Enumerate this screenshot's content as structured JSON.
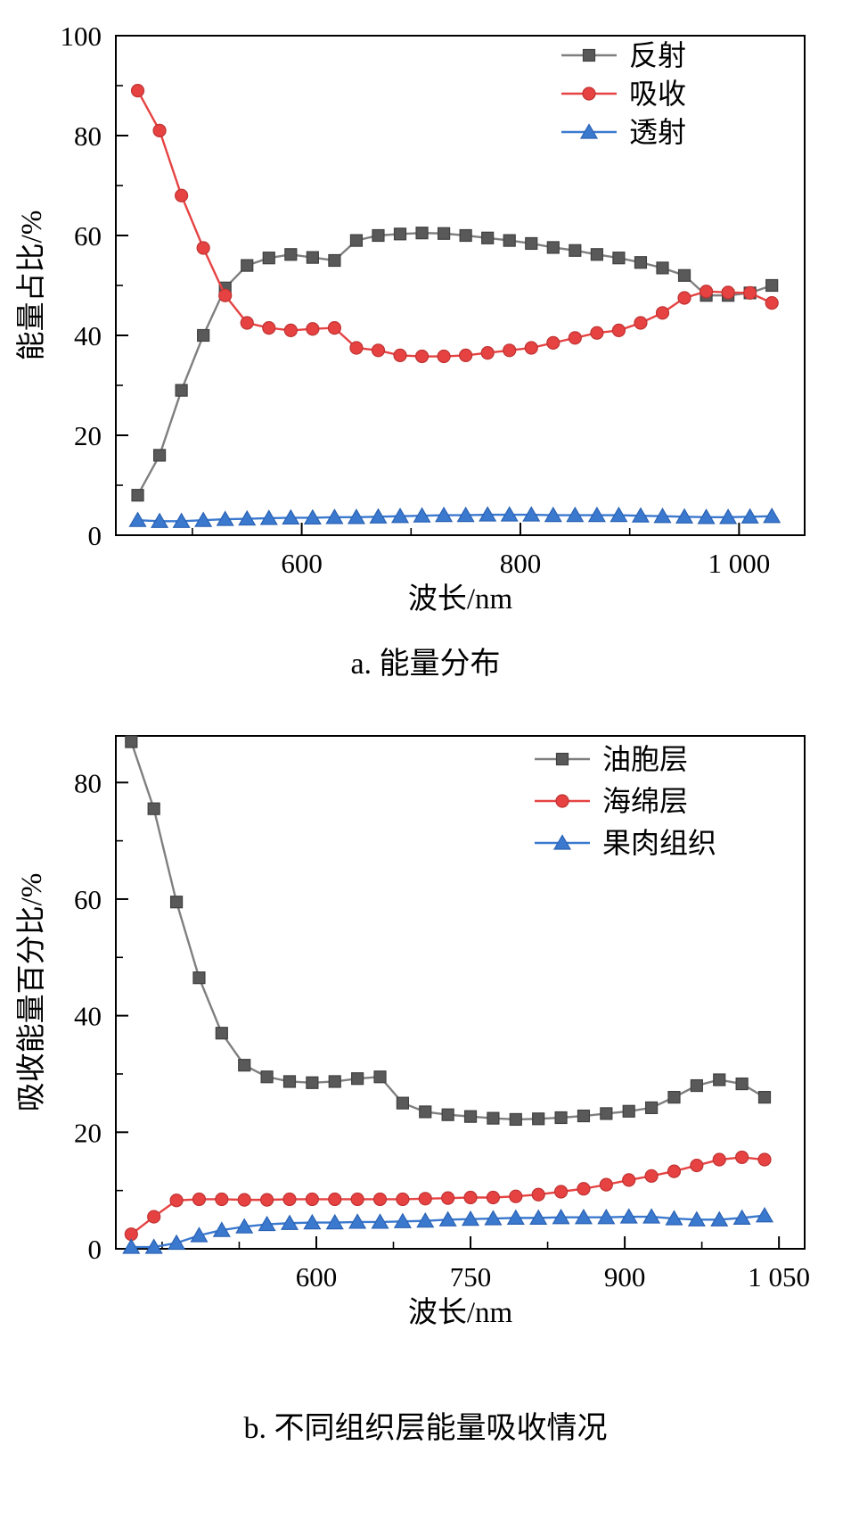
{
  "page": {
    "background": "#ffffff"
  },
  "chart_data": [
    {
      "id": "a",
      "type": "line",
      "caption": "a. 能量分布",
      "xlabel": "波长/nm",
      "ylabel": "能量占比/%",
      "xlim": [
        430,
        1060
      ],
      "ylim": [
        0,
        100
      ],
      "grid": false,
      "legend_position": "top-right-inside",
      "xticks": [
        {
          "v": 600,
          "label": "600"
        },
        {
          "v": 800,
          "label": "800"
        },
        {
          "v": 1000,
          "label": "1 000"
        }
      ],
      "xminor": [
        500,
        700,
        900
      ],
      "yticks": [
        {
          "v": 0,
          "label": "0"
        },
        {
          "v": 20,
          "label": "20"
        },
        {
          "v": 40,
          "label": "40"
        },
        {
          "v": 60,
          "label": "60"
        },
        {
          "v": 80,
          "label": "80"
        },
        {
          "v": 100,
          "label": "100"
        }
      ],
      "yminor": [
        10,
        30,
        50,
        70,
        90
      ],
      "series": [
        {
          "key": "reflect",
          "name": "反射",
          "marker": "square",
          "color": "#595959",
          "edge_color": "#404040",
          "line_color": "#7f7f7f",
          "x": [
            450,
            470,
            490,
            510,
            530,
            550,
            570,
            590,
            610,
            630,
            650,
            670,
            690,
            710,
            730,
            750,
            770,
            790,
            810,
            830,
            850,
            870,
            890,
            910,
            930,
            950,
            970,
            990,
            1010,
            1030
          ],
          "y": [
            8,
            16,
            29,
            40,
            49.5,
            54,
            55.5,
            56.2,
            55.6,
            55,
            59,
            60,
            60.3,
            60.5,
            60.4,
            60,
            59.5,
            59,
            58.4,
            57.6,
            57,
            56.2,
            55.5,
            54.6,
            53.5,
            52,
            48,
            48,
            48.5,
            50
          ]
        },
        {
          "key": "absorb",
          "name": "吸收",
          "marker": "circle",
          "color": "#e64242",
          "edge_color": "#c03232",
          "line_color": "#e64242",
          "x": [
            450,
            470,
            490,
            510,
            530,
            550,
            570,
            590,
            610,
            630,
            650,
            670,
            690,
            710,
            730,
            750,
            770,
            790,
            810,
            830,
            850,
            870,
            890,
            910,
            930,
            950,
            970,
            990,
            1010,
            1030
          ],
          "y": [
            89,
            81,
            68,
            57.5,
            48,
            42.5,
            41.5,
            41,
            41.3,
            41.5,
            37.5,
            37,
            36,
            35.8,
            35.8,
            36,
            36.5,
            37,
            37.5,
            38.5,
            39.5,
            40.5,
            41,
            42.5,
            44.5,
            47.5,
            48.8,
            48.6,
            48.5,
            46.5
          ]
        },
        {
          "key": "transmit",
          "name": "透射",
          "marker": "triangle",
          "color": "#3b79cf",
          "edge_color": "#2a62b4",
          "line_color": "#3b79cf",
          "x": [
            450,
            470,
            490,
            510,
            530,
            550,
            570,
            590,
            610,
            630,
            650,
            670,
            690,
            710,
            730,
            750,
            770,
            790,
            810,
            830,
            850,
            870,
            890,
            910,
            930,
            950,
            970,
            990,
            1010,
            1030
          ],
          "y": [
            3,
            2.8,
            2.8,
            3,
            3.2,
            3.3,
            3.4,
            3.5,
            3.5,
            3.6,
            3.6,
            3.7,
            3.8,
            3.9,
            4,
            4,
            4.1,
            4.1,
            4.1,
            4,
            4,
            4,
            4,
            3.9,
            3.8,
            3.7,
            3.6,
            3.6,
            3.7,
            3.8
          ]
        }
      ]
    },
    {
      "id": "b",
      "type": "line",
      "caption": "b. 不同组织层能量吸收情况",
      "xlabel": "波长/nm",
      "ylabel": "吸收能量百分比/%",
      "xlim": [
        405,
        1075
      ],
      "ylim": [
        0,
        88
      ],
      "grid": false,
      "legend_position": "top-right-inside",
      "xticks": [
        {
          "v": 600,
          "label": "600"
        },
        {
          "v": 750,
          "label": "750"
        },
        {
          "v": 900,
          "label": "900"
        },
        {
          "v": 1050,
          "label": "1 050"
        }
      ],
      "xminor": [
        450,
        525,
        675,
        825,
        975
      ],
      "yticks": [
        {
          "v": 0,
          "label": "0"
        },
        {
          "v": 20,
          "label": "20"
        },
        {
          "v": 40,
          "label": "40"
        },
        {
          "v": 60,
          "label": "60"
        },
        {
          "v": 80,
          "label": "80"
        }
      ],
      "yminor": [
        10,
        30,
        50,
        70
      ],
      "series": [
        {
          "key": "oil-cell-layer",
          "name": "油胞层",
          "marker": "square",
          "color": "#595959",
          "edge_color": "#404040",
          "line_color": "#7f7f7f",
          "x": [
            420,
            442,
            464,
            486,
            508,
            530,
            552,
            574,
            596,
            618,
            640,
            662,
            684,
            706,
            728,
            750,
            772,
            794,
            816,
            838,
            860,
            882,
            904,
            926,
            948,
            970,
            992,
            1014,
            1036
          ],
          "y": [
            87,
            75.5,
            59.5,
            46.5,
            37,
            31.5,
            29.5,
            28.7,
            28.5,
            28.7,
            29.2,
            29.5,
            25,
            23.5,
            23,
            22.7,
            22.4,
            22.2,
            22.3,
            22.5,
            22.8,
            23.2,
            23.6,
            24.2,
            26,
            28,
            29,
            28.3,
            26
          ]
        },
        {
          "key": "sponge-layer",
          "name": "海绵层",
          "marker": "circle",
          "color": "#e64242",
          "edge_color": "#c03232",
          "line_color": "#e64242",
          "x": [
            420,
            442,
            464,
            486,
            508,
            530,
            552,
            574,
            596,
            618,
            640,
            662,
            684,
            706,
            728,
            750,
            772,
            794,
            816,
            838,
            860,
            882,
            904,
            926,
            948,
            970,
            992,
            1014,
            1036
          ],
          "y": [
            2.5,
            5.5,
            8.3,
            8.5,
            8.5,
            8.4,
            8.4,
            8.5,
            8.5,
            8.5,
            8.5,
            8.5,
            8.5,
            8.6,
            8.7,
            8.8,
            8.8,
            9,
            9.3,
            9.8,
            10.3,
            11,
            11.8,
            12.5,
            13.3,
            14.3,
            15.3,
            15.7,
            15.3
          ]
        },
        {
          "key": "pulp-tissue",
          "name": "果肉组织",
          "marker": "triangle",
          "color": "#3b79cf",
          "edge_color": "#2a62b4",
          "line_color": "#3b79cf",
          "x": [
            420,
            442,
            464,
            486,
            508,
            530,
            552,
            574,
            596,
            618,
            640,
            662,
            684,
            706,
            728,
            750,
            772,
            794,
            816,
            838,
            860,
            882,
            904,
            926,
            948,
            970,
            992,
            1014,
            1036
          ],
          "y": [
            0.3,
            0.3,
            1,
            2.3,
            3.2,
            3.8,
            4.2,
            4.4,
            4.5,
            4.5,
            4.6,
            4.6,
            4.7,
            4.8,
            5,
            5.1,
            5.2,
            5.3,
            5.3,
            5.4,
            5.4,
            5.4,
            5.5,
            5.5,
            5.2,
            5,
            5,
            5.3,
            5.7
          ]
        }
      ]
    }
  ]
}
